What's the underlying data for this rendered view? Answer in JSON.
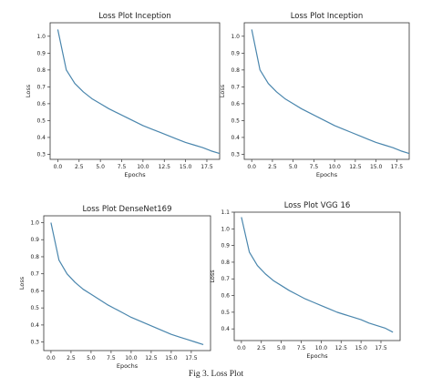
{
  "figure": {
    "caption": "Fig 3. Loss Plot",
    "line_color": "#4a86ad"
  },
  "chart_data": [
    {
      "type": "line",
      "title": "Loss Plot Inception",
      "xlabel": "Epochs",
      "ylabel": "Loss",
      "xlim": [
        -0.9,
        19
      ],
      "ylim": [
        0.27,
        1.08
      ],
      "xticks": [
        "0.0",
        "2.5",
        "5.0",
        "7.5",
        "10.0",
        "12.5",
        "15.0",
        "17.5"
      ],
      "yticks": [
        "0.3",
        "0.4",
        "0.5",
        "0.6",
        "0.7",
        "0.8",
        "0.9",
        "1.0"
      ],
      "x": [
        0,
        1,
        2,
        3,
        4,
        5,
        6,
        7,
        8,
        9,
        10,
        11,
        12,
        13,
        14,
        15,
        16,
        17,
        18,
        19
      ],
      "values": [
        1.04,
        0.8,
        0.72,
        0.67,
        0.63,
        0.6,
        0.57,
        0.545,
        0.52,
        0.495,
        0.47,
        0.45,
        0.43,
        0.41,
        0.39,
        0.37,
        0.355,
        0.34,
        0.32,
        0.305
      ],
      "grid": false
    },
    {
      "type": "line",
      "title": "Loss Plot Inception",
      "xlabel": "Epochs",
      "ylabel": "Loss",
      "xlim": [
        -0.9,
        19
      ],
      "ylim": [
        0.27,
        1.08
      ],
      "xticks": [
        "0.0",
        "2.5",
        "5.0",
        "7.5",
        "10.0",
        "12.5",
        "15.0",
        "17.5"
      ],
      "yticks": [
        "0.3",
        "0.4",
        "0.5",
        "0.6",
        "0.7",
        "0.8",
        "0.9",
        "1.0"
      ],
      "x": [
        0,
        1,
        2,
        3,
        4,
        5,
        6,
        7,
        8,
        9,
        10,
        11,
        12,
        13,
        14,
        15,
        16,
        17,
        18,
        19
      ],
      "values": [
        1.04,
        0.8,
        0.72,
        0.67,
        0.63,
        0.6,
        0.57,
        0.545,
        0.52,
        0.495,
        0.47,
        0.45,
        0.43,
        0.41,
        0.39,
        0.37,
        0.355,
        0.34,
        0.32,
        0.305
      ],
      "grid": false
    },
    {
      "type": "line",
      "title": "Loss Plot DenseNet169",
      "xlabel": "Epochs",
      "ylabel": "Loss",
      "xlim": [
        -0.9,
        19.9
      ],
      "ylim": [
        0.25,
        1.04
      ],
      "xticks": [
        "0.0",
        "2.5",
        "5.0",
        "7.5",
        "10.0",
        "12.5",
        "15.0",
        "17.5"
      ],
      "yticks": [
        "0.3",
        "0.4",
        "0.5",
        "0.6",
        "0.7",
        "0.8",
        "0.9",
        "1.0"
      ],
      "x": [
        0,
        1,
        2,
        3,
        4,
        5,
        6,
        7,
        8,
        9,
        10,
        11,
        12,
        13,
        14,
        15,
        16,
        17,
        18,
        19
      ],
      "values": [
        1.0,
        0.78,
        0.7,
        0.65,
        0.61,
        0.58,
        0.55,
        0.52,
        0.495,
        0.47,
        0.445,
        0.425,
        0.405,
        0.385,
        0.365,
        0.345,
        0.33,
        0.315,
        0.3,
        0.285
      ],
      "grid": false
    },
    {
      "type": "line",
      "title": "Loss Plot VGG 16",
      "xlabel": "Epochs",
      "ylabel": "Loss",
      "xlim": [
        -0.9,
        19.9
      ],
      "ylim": [
        0.33,
        1.1
      ],
      "xticks": [
        "0.0",
        "2.5",
        "5.0",
        "7.5",
        "10.0",
        "12.5",
        "15.0",
        "17.5"
      ],
      "yticks": [
        "0.4",
        "0.5",
        "0.6",
        "0.7",
        "0.8",
        "0.9",
        "1.0",
        "1.1"
      ],
      "x": [
        0,
        1,
        2,
        3,
        4,
        5,
        6,
        7,
        8,
        9,
        10,
        11,
        12,
        13,
        14,
        15,
        16,
        17,
        18,
        19
      ],
      "values": [
        1.07,
        0.86,
        0.78,
        0.73,
        0.69,
        0.66,
        0.63,
        0.605,
        0.58,
        0.56,
        0.54,
        0.52,
        0.5,
        0.485,
        0.47,
        0.455,
        0.435,
        0.42,
        0.405,
        0.38
      ],
      "grid": false
    }
  ]
}
